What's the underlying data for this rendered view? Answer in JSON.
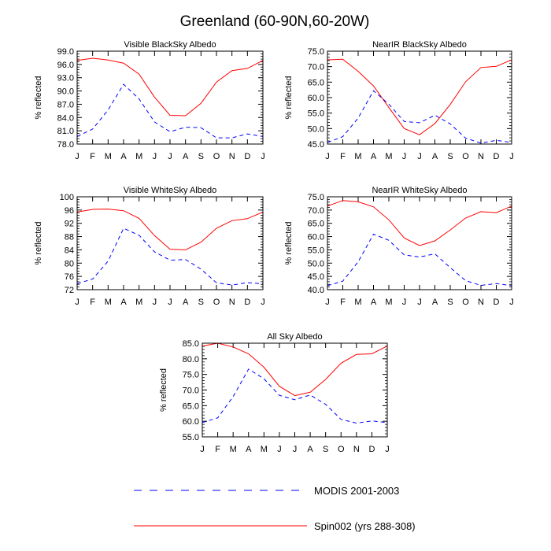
{
  "figure": {
    "title": "Greenland (60-90N,60-20W)"
  },
  "legend": {
    "items": [
      {
        "label": "MODIS 2001-2003",
        "color": "#0000ff",
        "dashed": true
      },
      {
        "label": "Spin002 (yrs 288-308)",
        "color": "#ff0000",
        "dashed": false
      }
    ]
  },
  "chart_data": [
    {
      "type": "line",
      "title": "Visible BlackSky Albedo",
      "xlabel": "",
      "ylabel": "% reflected",
      "categories": [
        "J",
        "F",
        "M",
        "A",
        "M",
        "J",
        "J",
        "A",
        "S",
        "O",
        "N",
        "D",
        "J"
      ],
      "ylim": [
        78.0,
        99.0
      ],
      "yticks": [
        "78.0",
        "81.0",
        "84.0",
        "87.0",
        "90.0",
        "93.0",
        "96.0",
        "99.0"
      ],
      "series": [
        {
          "name": "Spin002 (yrs 288-308)",
          "color": "#ff0000",
          "dashed": false,
          "values": [
            96.9,
            97.4,
            97.0,
            96.3,
            93.8,
            88.6,
            84.5,
            84.4,
            87.2,
            92.0,
            94.6,
            95.1,
            96.9
          ]
        },
        {
          "name": "MODIS 2001-2003",
          "color": "#0000ff",
          "dashed": true,
          "values": [
            79.7,
            81.4,
            85.7,
            91.5,
            88.2,
            83.0,
            80.8,
            81.8,
            81.7,
            79.4,
            79.4,
            80.3,
            79.7
          ]
        }
      ]
    },
    {
      "type": "line",
      "title": "NearIR BlackSky Albedo",
      "xlabel": "",
      "ylabel": "% reflected",
      "categories": [
        "J",
        "F",
        "M",
        "A",
        "M",
        "J",
        "J",
        "A",
        "S",
        "O",
        "N",
        "D",
        "J"
      ],
      "ylim": [
        45.0,
        75.0
      ],
      "yticks": [
        "45.0",
        "50.0",
        "55.0",
        "60.0",
        "65.0",
        "70.0",
        "75.0"
      ],
      "series": [
        {
          "name": "Spin002 (yrs 288-308)",
          "color": "#ff0000",
          "dashed": false,
          "values": [
            72.2,
            72.4,
            68.5,
            63.8,
            56.8,
            50.0,
            48.0,
            51.6,
            57.8,
            65.1,
            69.7,
            70.1,
            72.2
          ]
        },
        {
          "name": "MODIS 2001-2003",
          "color": "#0000ff",
          "dashed": true,
          "values": [
            45.5,
            47.4,
            53.4,
            62.2,
            57.9,
            52.3,
            51.9,
            54.3,
            51.5,
            46.9,
            45.3,
            46.2,
            45.5
          ]
        }
      ]
    },
    {
      "type": "line",
      "title": "Visible WhiteSky Albedo",
      "xlabel": "",
      "ylabel": "% reflected",
      "categories": [
        "J",
        "F",
        "M",
        "A",
        "M",
        "J",
        "J",
        "A",
        "S",
        "O",
        "N",
        "D",
        "J"
      ],
      "ylim": [
        72,
        100
      ],
      "yticks": [
        "72",
        "76",
        "80",
        "84",
        "88",
        "92",
        "96",
        "100"
      ],
      "series": [
        {
          "name": "Spin002 (yrs 288-308)",
          "color": "#ff0000",
          "dashed": false,
          "values": [
            95.4,
            96.2,
            96.3,
            95.8,
            93.5,
            88.3,
            84.2,
            84.0,
            86.3,
            90.5,
            92.8,
            93.4,
            95.4
          ]
        },
        {
          "name": "MODIS 2001-2003",
          "color": "#0000ff",
          "dashed": true,
          "values": [
            73.8,
            75.2,
            80.6,
            90.5,
            88.4,
            83.4,
            80.9,
            81.1,
            78.2,
            74.1,
            73.4,
            74.1,
            73.8
          ]
        }
      ]
    },
    {
      "type": "line",
      "title": "NearIR WhiteSky Albedo",
      "xlabel": "",
      "ylabel": "% reflected",
      "categories": [
        "J",
        "F",
        "M",
        "A",
        "M",
        "J",
        "J",
        "A",
        "S",
        "O",
        "N",
        "D",
        "J"
      ],
      "ylim": [
        40.0,
        75.0
      ],
      "yticks": [
        "40.0",
        "45.0",
        "50.0",
        "55.0",
        "60.0",
        "65.0",
        "70.0",
        "75.0"
      ],
      "series": [
        {
          "name": "Spin002 (yrs 288-308)",
          "color": "#ff0000",
          "dashed": false,
          "values": [
            71.5,
            73.6,
            73.1,
            71.2,
            66.3,
            59.5,
            56.6,
            58.4,
            62.5,
            67.0,
            69.4,
            69.0,
            71.5
          ]
        },
        {
          "name": "MODIS 2001-2003",
          "color": "#0000ff",
          "dashed": true,
          "values": [
            41.5,
            43.2,
            50.5,
            60.9,
            58.6,
            53.1,
            52.3,
            53.5,
            48.3,
            43.4,
            41.6,
            42.3,
            41.5
          ]
        }
      ]
    },
    {
      "type": "line",
      "title": "All Sky Albedo",
      "xlabel": "",
      "ylabel": "% reflected",
      "categories": [
        "J",
        "F",
        "M",
        "A",
        "M",
        "J",
        "J",
        "A",
        "S",
        "O",
        "N",
        "D",
        "J"
      ],
      "ylim": [
        55.0,
        85.0
      ],
      "yticks": [
        "55.0",
        "60.0",
        "65.0",
        "70.0",
        "75.0",
        "80.0",
        "85.0"
      ],
      "series": [
        {
          "name": "Spin002 (yrs 288-308)",
          "color": "#ff0000",
          "dashed": false,
          "values": [
            84.1,
            85.0,
            83.8,
            81.6,
            77.3,
            71.2,
            68.2,
            69.3,
            73.4,
            78.6,
            81.4,
            81.6,
            84.1
          ]
        },
        {
          "name": "MODIS 2001-2003",
          "color": "#0000ff",
          "dashed": true,
          "values": [
            59.6,
            61.1,
            67.9,
            76.7,
            73.6,
            68.3,
            66.9,
            68.4,
            65.4,
            60.6,
            59.4,
            60.1,
            59.6
          ]
        }
      ]
    }
  ]
}
